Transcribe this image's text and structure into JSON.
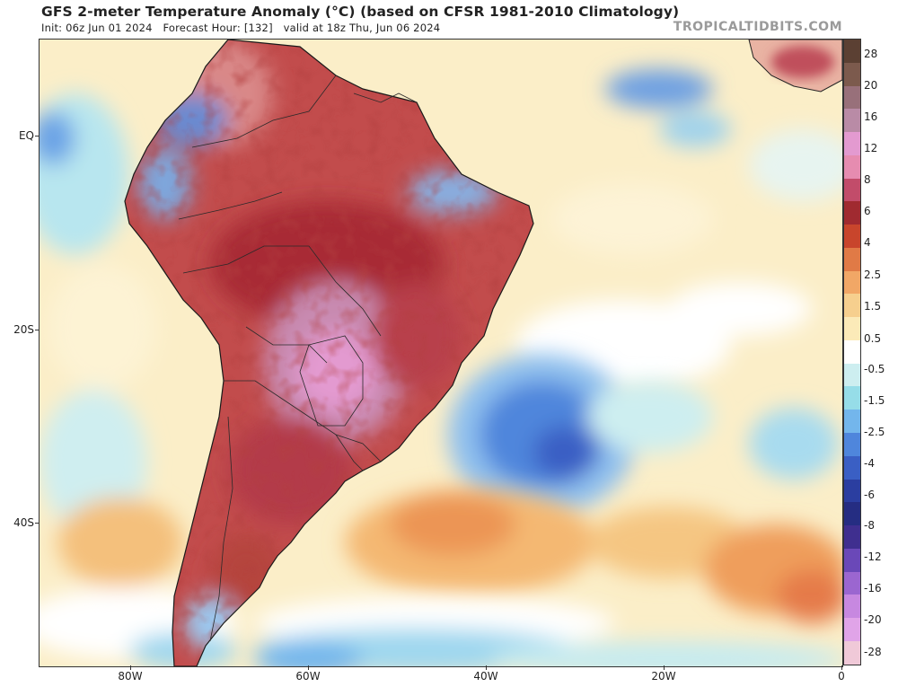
{
  "header": {
    "title": "GFS 2-meter Temperature Anomaly (°C) (based on CFSR 1981-2010 Climatology)",
    "init": "Init: 06z Jun 01 2024",
    "forecast_hour": "Forecast Hour: [132]",
    "valid": "valid at 18z Thu, Jun 06 2024",
    "watermark": "TROPICALTIDBITS.COM"
  },
  "axes": {
    "lat_labels": [
      "EQ",
      "20S",
      "40S"
    ],
    "lon_labels": [
      "80W",
      "60W",
      "40W",
      "20W",
      "0"
    ]
  },
  "colorbar": {
    "labels": [
      "28",
      "20",
      "16",
      "12",
      "8",
      "6",
      "4",
      "2.5",
      "1.5",
      "0.5",
      "-0.5",
      "-1.5",
      "-2.5",
      "-4",
      "-6",
      "-8",
      "-12",
      "-16",
      "-20",
      "-28"
    ],
    "colors": [
      "#5b4033",
      "#7c5a4d",
      "#98707a",
      "#b98ba6",
      "#e39ad0",
      "#e68cb0",
      "#c24c6a",
      "#a02a30",
      "#c8452c",
      "#e07a46",
      "#f1a766",
      "#f6cf8e",
      "#fbeab8",
      "#ffffff",
      "#cdeef0",
      "#96dde8",
      "#73b6ec",
      "#4f86dc",
      "#3a5fc4",
      "#2b3ea0",
      "#252d82",
      "#3f2f8f",
      "#6a48b8",
      "#9b66d0",
      "#c788e0",
      "#e0a4e8",
      "#f0c9d8"
    ]
  }
}
